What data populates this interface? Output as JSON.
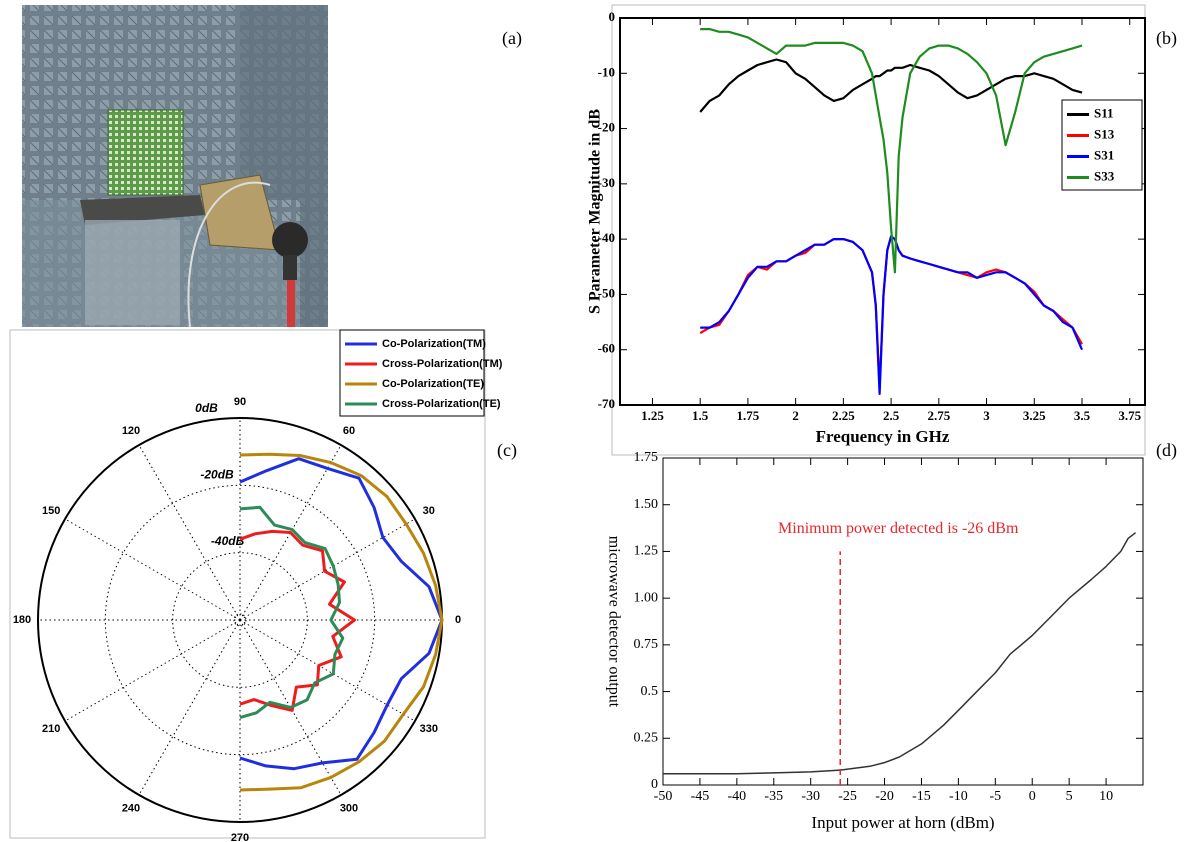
{
  "panel_labels": [
    "(a)",
    "(b)",
    "(c)",
    "(d)"
  ],
  "chart_data": [
    {
      "type": "line",
      "x_label": "Frequency in GHz",
      "y_label": "S Parameter Magnitude in dB",
      "xlim": [
        1.08,
        3.83
      ],
      "ylim": [
        -70,
        0
      ],
      "xticks": [
        1.25,
        1.5,
        1.75,
        2,
        2.25,
        2.5,
        2.75,
        3,
        3.25,
        3.5,
        3.75
      ],
      "yticks": [
        0,
        -10,
        -20,
        -30,
        -40,
        -50,
        -60,
        -70
      ],
      "legend": "right",
      "x": [
        1.5,
        1.55,
        1.6,
        1.65,
        1.7,
        1.75,
        1.8,
        1.85,
        1.9,
        1.95,
        2,
        2.05,
        2.1,
        2.15,
        2.2,
        2.25,
        2.3,
        2.35,
        2.4,
        2.42,
        2.44,
        2.46,
        2.48,
        2.5,
        2.52,
        2.54,
        2.56,
        2.6,
        2.65,
        2.7,
        2.75,
        2.8,
        2.85,
        2.9,
        2.95,
        3,
        3.05,
        3.1,
        3.15,
        3.2,
        3.25,
        3.3,
        3.35,
        3.4,
        3.45,
        3.5
      ],
      "series": [
        {
          "name": "S11",
          "color": "#000000",
          "values": [
            -17,
            -15,
            -14,
            -12,
            -10.5,
            -9.5,
            -8.5,
            -8,
            -7.5,
            -8,
            -10,
            -11,
            -12.5,
            -14,
            -15,
            -14.5,
            -13,
            -12,
            -11,
            -10.5,
            -10.5,
            -10,
            -9.5,
            -9.5,
            -9,
            -9,
            -9,
            -8.5,
            -9,
            -9.5,
            -10.5,
            -12,
            -13.5,
            -14.5,
            -14,
            -13,
            -12,
            -11,
            -10.5,
            -10.5,
            -10,
            -10.5,
            -11,
            -12,
            -13,
            -13.5
          ]
        },
        {
          "name": "S13",
          "color": "#ff0000",
          "values": [
            -57,
            -56,
            -55.5,
            -53,
            -50,
            -46.5,
            -45,
            -45.5,
            -44,
            -44,
            -43,
            -42.5,
            -41,
            -41,
            -40,
            -40,
            -40.5,
            -42,
            -46,
            -52,
            -67,
            -50,
            -42,
            -39.5,
            -40,
            -42,
            -43,
            -43.5,
            -44,
            -44.5,
            -45,
            -45.5,
            -46,
            -46.5,
            -47,
            -46,
            -45.5,
            -46,
            -47,
            -48,
            -49.5,
            -52,
            -53,
            -54.5,
            -56,
            -59
          ]
        },
        {
          "name": "S31",
          "color": "#0000ff",
          "values": [
            -56,
            -56,
            -55,
            -53,
            -50,
            -47,
            -45,
            -45,
            -44,
            -44,
            -43,
            -42,
            -41,
            -41,
            -40,
            -40,
            -40.5,
            -42,
            -46,
            -52,
            -68,
            -50,
            -42,
            -39.5,
            -40,
            -42,
            -43,
            -43.5,
            -44,
            -44.5,
            -45,
            -45.5,
            -46,
            -46,
            -47,
            -46.5,
            -46,
            -46,
            -47,
            -48,
            -50,
            -52,
            -53,
            -55,
            -56,
            -60
          ]
        },
        {
          "name": "S33",
          "color": "#1e8c1e",
          "values": [
            -2,
            -2,
            -2.5,
            -2.5,
            -3,
            -3.5,
            -4.5,
            -5.5,
            -6.5,
            -5,
            -5,
            -5,
            -4.5,
            -4.5,
            -4.5,
            -4.5,
            -5,
            -6,
            -10,
            -14,
            -18,
            -22,
            -28,
            -38,
            -46,
            -25,
            -18,
            -10,
            -7,
            -5.5,
            -5,
            -5,
            -5.5,
            -6.5,
            -8,
            -10,
            -14,
            -23,
            -17,
            -10,
            -8,
            -7,
            -6.5,
            -6,
            -5.5,
            -5
          ]
        }
      ]
    },
    {
      "type": "polar",
      "rlim": [
        -60,
        0
      ],
      "rticks": [
        {
          "value": 0,
          "label": "0dB"
        },
        {
          "value": -20,
          "label": "-20dB"
        },
        {
          "value": -40,
          "label": "-40dB"
        }
      ],
      "thetaticks": [
        0,
        30,
        60,
        90,
        120,
        150,
        180,
        210,
        240,
        270,
        300,
        330
      ],
      "legend": "upper right",
      "theta": [
        90,
        80,
        70,
        60,
        50,
        40,
        30,
        20,
        10,
        0,
        350,
        340,
        330,
        320,
        310,
        300,
        290,
        280,
        270
      ],
      "series": [
        {
          "name": "Co-Polarization(TM)",
          "color": "#1f2fe0",
          "values": [
            -19,
            -15,
            -9,
            -8,
            -5,
            -8,
            -11,
            -9,
            -3,
            0,
            -3,
            -9,
            -9.5,
            -8,
            -6,
            -11,
            -13,
            -16,
            -19
          ]
        },
        {
          "name": "Cross-Polarization(TM)",
          "color": "#ee1c1c",
          "values": [
            -36,
            -34,
            -32,
            -30,
            -31,
            -28,
            -31,
            -27,
            -33,
            -26,
            -32,
            -28,
            -33,
            -30,
            -34,
            -29,
            -33,
            -36,
            -35
          ]
        },
        {
          "name": "Co-Polarization(TE)",
          "color": "#b8860b",
          "values": [
            -11,
            -10,
            -8,
            -6,
            -4,
            -3,
            -3,
            -2,
            -1,
            0,
            -1,
            -2,
            -4,
            -4,
            -5,
            -6,
            -7,
            -9,
            -9.5
          ]
        },
        {
          "name": "Cross-Polarization(TE)",
          "color": "#2e8b57",
          "values": [
            -27,
            -26,
            -30,
            -29,
            -30,
            -27,
            -28,
            -29,
            -30,
            -33,
            -29,
            -30,
            -28,
            -31,
            -29,
            -30,
            -34,
            -32,
            -31
          ]
        }
      ]
    },
    {
      "type": "line",
      "x_label": "Input power at horn (dBm)",
      "y_label": "microwave detector output",
      "xlim": [
        -50,
        15
      ],
      "ylim": [
        0,
        1.75
      ],
      "xticks": [
        -50,
        -45,
        -40,
        -35,
        -30,
        -25,
        -20,
        -15,
        -10,
        -5,
        0,
        5,
        10
      ],
      "yticks": [
        0,
        0.25,
        0.5,
        0.75,
        {
          "value": 1,
          "label": "1.00"
        },
        1.25,
        {
          "value": 1.5,
          "label": "1.50"
        },
        1.75
      ],
      "x": [
        -50,
        -45,
        -40,
        -35,
        -30,
        -26,
        -22,
        -20,
        -18,
        -15,
        -12,
        -10,
        -7,
        -5,
        -3,
        0,
        3,
        5,
        8,
        10,
        12,
        13,
        14
      ],
      "values": [
        0.06,
        0.06,
        0.06,
        0.065,
        0.07,
        0.08,
        0.1,
        0.12,
        0.15,
        0.22,
        0.32,
        0.4,
        0.52,
        0.6,
        0.7,
        0.8,
        0.92,
        1.0,
        1.1,
        1.17,
        1.25,
        1.32,
        1.35
      ],
      "color": "#333333",
      "annotation": {
        "text": "Minimum power detected is -26 dBm",
        "x": -26,
        "y": 1.25,
        "color": "#e8262b"
      }
    }
  ]
}
